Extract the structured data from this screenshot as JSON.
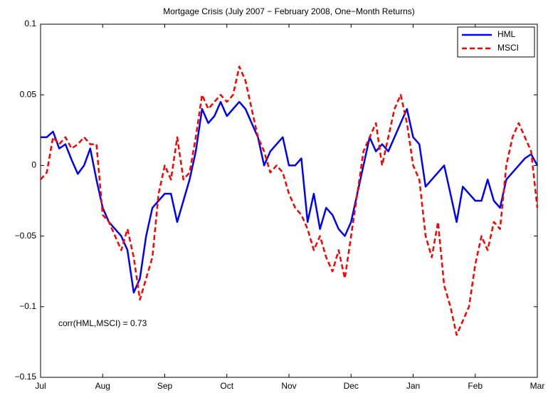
{
  "chart_data": {
    "type": "line",
    "title": "Mortgage Crisis (July 2007 − February 2008, One−Month Returns)",
    "annotation": "corr(HML,MSCI) = 0.73",
    "legend": "upper right",
    "categories": [
      "Jul",
      null,
      null,
      null,
      null,
      null,
      null,
      null,
      null,
      null,
      "Aug",
      null,
      null,
      null,
      null,
      null,
      null,
      null,
      null,
      null,
      "Sep",
      null,
      null,
      null,
      null,
      null,
      null,
      null,
      null,
      null,
      "Oct",
      null,
      null,
      null,
      null,
      null,
      null,
      null,
      null,
      null,
      "Nov",
      null,
      null,
      null,
      null,
      null,
      null,
      null,
      null,
      null,
      "Dec",
      null,
      null,
      null,
      null,
      null,
      null,
      null,
      null,
      null,
      "Jan",
      null,
      null,
      null,
      null,
      null,
      null,
      null,
      null,
      null,
      "Feb",
      null,
      null,
      null,
      null,
      null,
      null,
      null,
      null,
      null,
      "Mar"
    ],
    "ylim": [
      -0.15,
      0.1
    ],
    "yticks": [
      {
        "value": -0.15,
        "label": "−0.15"
      },
      {
        "value": -0.1,
        "label": "−0.1"
      },
      {
        "value": -0.05,
        "label": "−0.05"
      },
      0,
      0.05,
      0.1
    ],
    "series": [
      {
        "name": "HML",
        "color": "#0000ff",
        "dash": "solid",
        "values": [
          0.02,
          0.02,
          0.024,
          0.012,
          0.015,
          0.004,
          -0.006,
          0.0,
          0.012,
          -0.01,
          -0.03,
          -0.04,
          -0.045,
          -0.05,
          -0.06,
          -0.09,
          -0.08,
          -0.05,
          -0.03,
          -0.025,
          -0.02,
          -0.02,
          -0.04,
          -0.025,
          -0.01,
          0.01,
          0.04,
          0.03,
          0.035,
          0.045,
          0.035,
          0.04,
          0.045,
          0.04,
          0.03,
          0.02,
          0.0,
          0.01,
          0.015,
          0.02,
          0.0,
          0.0,
          0.005,
          -0.04,
          -0.02,
          -0.045,
          -0.03,
          -0.035,
          -0.045,
          -0.05,
          -0.04,
          -0.02,
          0.0,
          0.02,
          0.01,
          0.015,
          0.01,
          0.02,
          0.03,
          0.04,
          0.02,
          0.015,
          -0.015,
          -0.01,
          -0.005,
          0.0,
          -0.02,
          -0.04,
          -0.015,
          -0.02,
          -0.025,
          -0.025,
          -0.01,
          -0.025,
          -0.03,
          -0.01,
          -0.005,
          0.0,
          0.005,
          0.008,
          0.0
        ]
      },
      {
        "name": "MSCI",
        "color": "#ff0000",
        "dash": "dashed",
        "values": [
          -0.01,
          -0.005,
          0.02,
          0.015,
          0.02,
          0.012,
          0.015,
          0.02,
          0.015,
          0.015,
          -0.035,
          -0.04,
          -0.05,
          -0.06,
          -0.045,
          -0.065,
          -0.095,
          -0.08,
          -0.065,
          -0.02,
          0.0,
          -0.01,
          0.02,
          -0.01,
          -0.005,
          0.02,
          0.05,
          0.04,
          0.045,
          0.05,
          0.045,
          0.05,
          0.07,
          0.06,
          0.04,
          0.02,
          0.01,
          -0.005,
          0.0,
          -0.005,
          -0.02,
          -0.03,
          -0.035,
          -0.045,
          -0.06,
          -0.05,
          -0.065,
          -0.075,
          -0.06,
          -0.08,
          -0.05,
          -0.02,
          0.01,
          0.02,
          0.03,
          0.0,
          0.02,
          0.04,
          0.05,
          0.03,
          0.0,
          -0.01,
          -0.05,
          -0.065,
          -0.04,
          -0.085,
          -0.1,
          -0.12,
          -0.11,
          -0.1,
          -0.07,
          -0.05,
          -0.06,
          -0.04,
          -0.045,
          0.0,
          0.02,
          0.03,
          0.02,
          0.01,
          -0.03
        ]
      }
    ]
  }
}
